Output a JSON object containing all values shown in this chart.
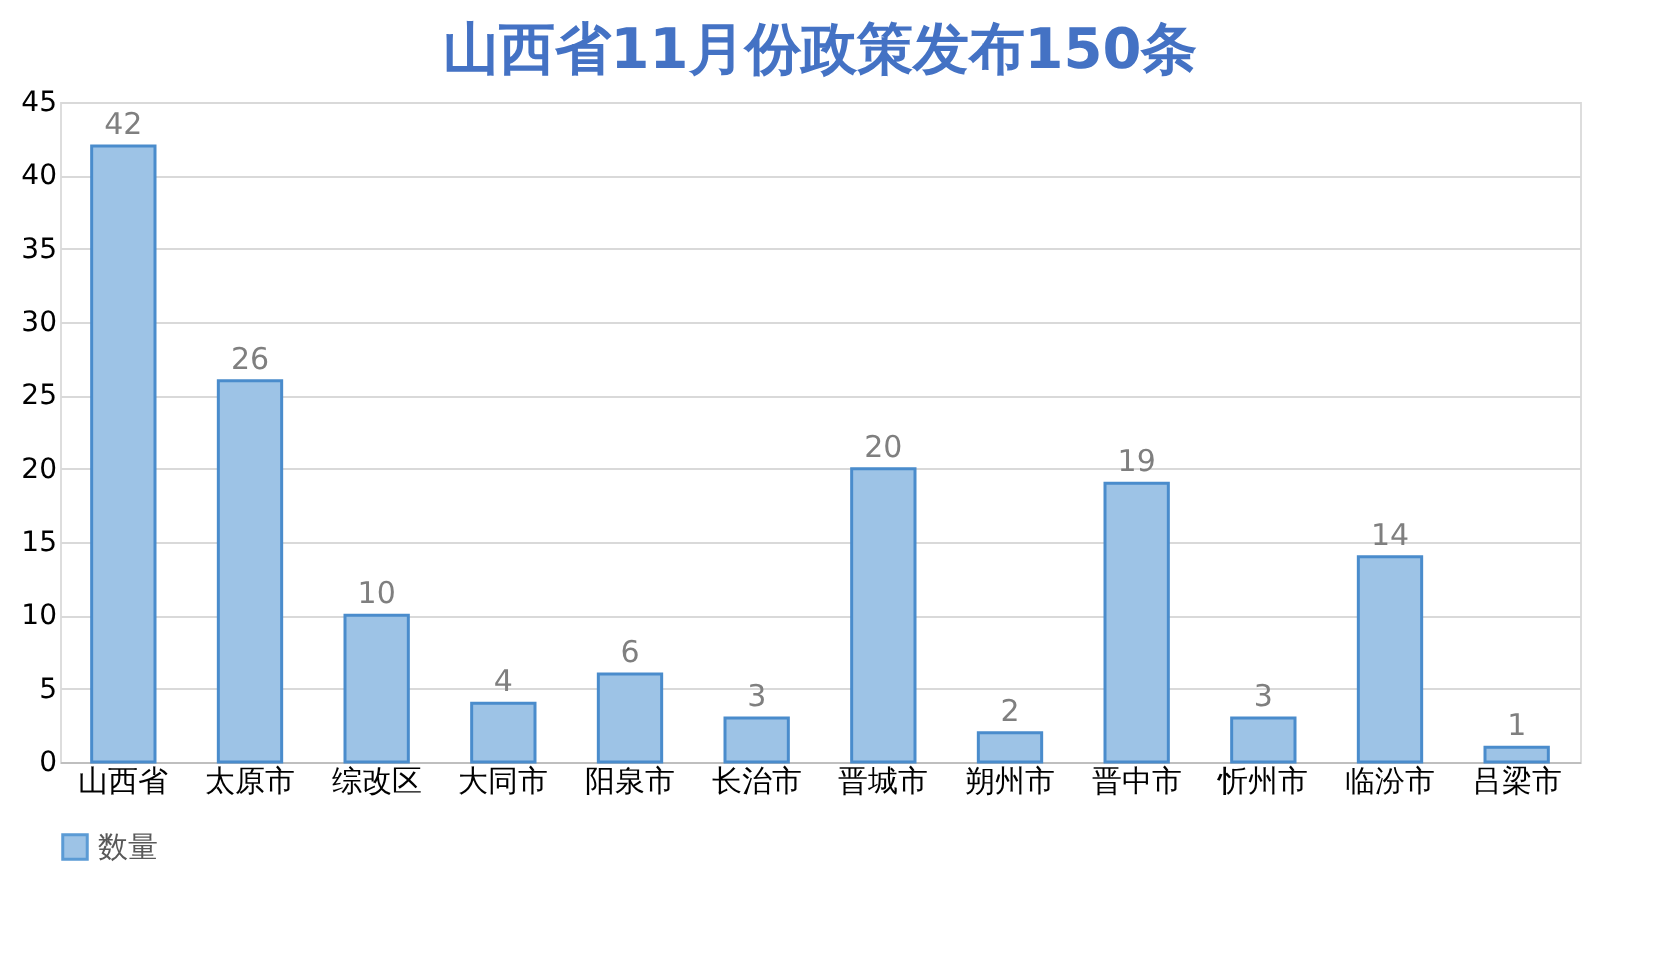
{
  "chart_data": {
    "type": "bar",
    "title": "山西省11月份政策发布150条",
    "categories": [
      "山西省",
      "太原市",
      "综改区",
      "大同市",
      "阳泉市",
      "长治市",
      "晋城市",
      "朔州市",
      "晋中市",
      "忻州市",
      "临汾市",
      "吕梁市"
    ],
    "series": [
      {
        "name": "数量",
        "color": "#9dc3e6",
        "values": [
          42,
          26,
          10,
          4,
          6,
          3,
          20,
          2,
          19,
          3,
          14,
          1
        ]
      }
    ],
    "ylim": [
      0,
      45
    ],
    "yticks": [
      0,
      5,
      10,
      15,
      20,
      25,
      30,
      35,
      40,
      45
    ],
    "grid": "y",
    "legend": "bottom",
    "data_labels": true
  }
}
